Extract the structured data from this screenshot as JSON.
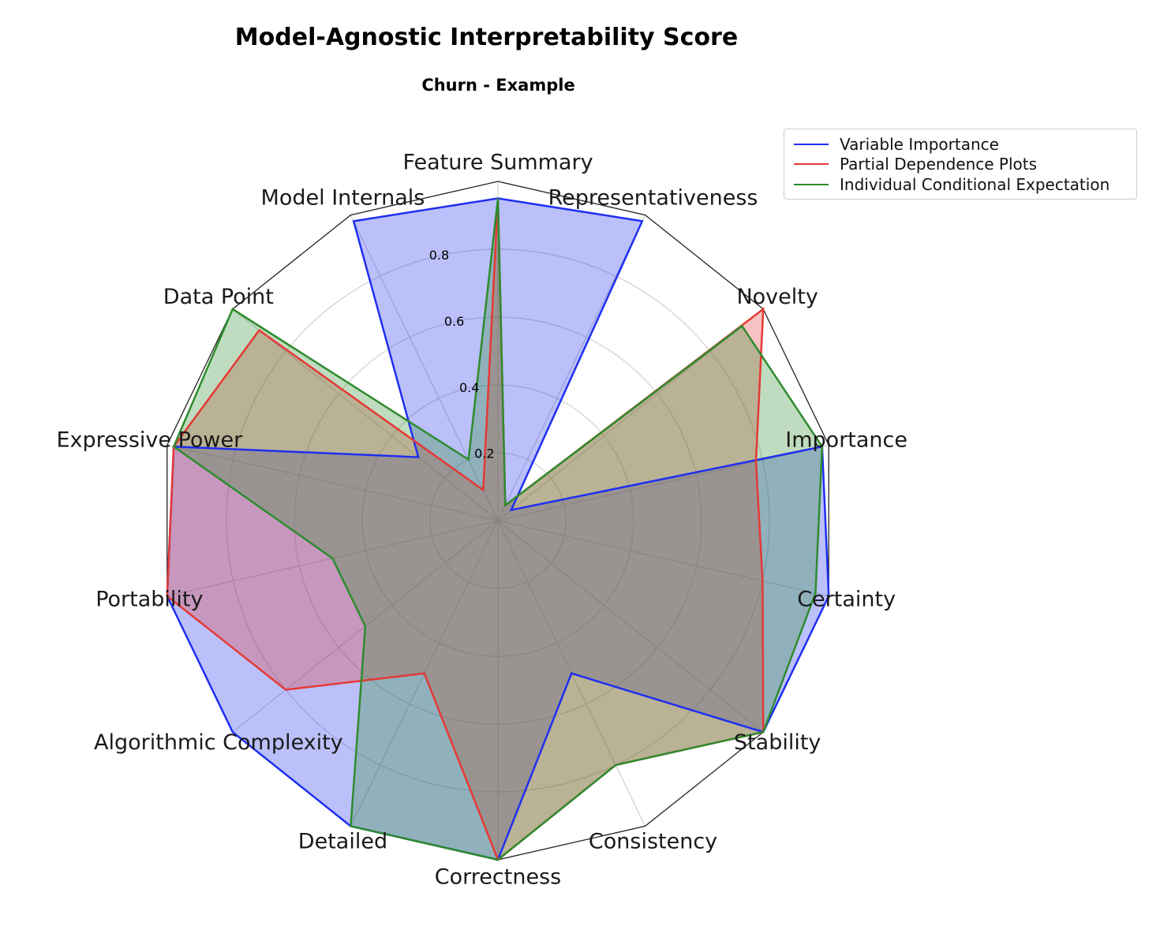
{
  "chart_data": {
    "type": "radar",
    "title": "Model-Agnostic Interpretability Score",
    "subtitle": "Churn - Example",
    "categories": [
      "Feature Summary",
      "Representativeness",
      "Novelty",
      "Importance",
      "Certainty",
      "Stability",
      "Consistency",
      "Correctness",
      "Detailed",
      "Algorithmic Complexity",
      "Portability",
      "Expressive Power",
      "Data Point",
      "Model Internals"
    ],
    "rlim": [
      0,
      1
    ],
    "r_ticks": [
      0.2,
      0.4,
      0.6,
      0.8
    ],
    "r_tick_labels": [
      "0.2",
      "0.4",
      "0.6",
      "0.8"
    ],
    "grid": true,
    "legend_position": "top-right",
    "series": [
      {
        "name": "Variable Importance",
        "color": "#1f2ff0",
        "values": [
          0.95,
          0.98,
          0.05,
          0.98,
          1.0,
          1.0,
          0.5,
          1.0,
          1.0,
          1.0,
          1.0,
          0.98,
          0.3,
          0.98
        ]
      },
      {
        "name": "Partial Dependence Plots",
        "color": "#e53935",
        "values": [
          0.95,
          0.05,
          1.0,
          0.78,
          0.8,
          1.0,
          0.8,
          1.0,
          0.5,
          0.8,
          1.0,
          0.98,
          0.9,
          0.1
        ]
      },
      {
        "name": "Individual Conditional Expectation",
        "color": "#2e8b2e",
        "values": [
          0.95,
          0.05,
          0.92,
          0.98,
          0.96,
          1.0,
          0.8,
          1.0,
          1.0,
          0.5,
          0.5,
          0.98,
          1.0,
          0.2
        ]
      }
    ]
  }
}
